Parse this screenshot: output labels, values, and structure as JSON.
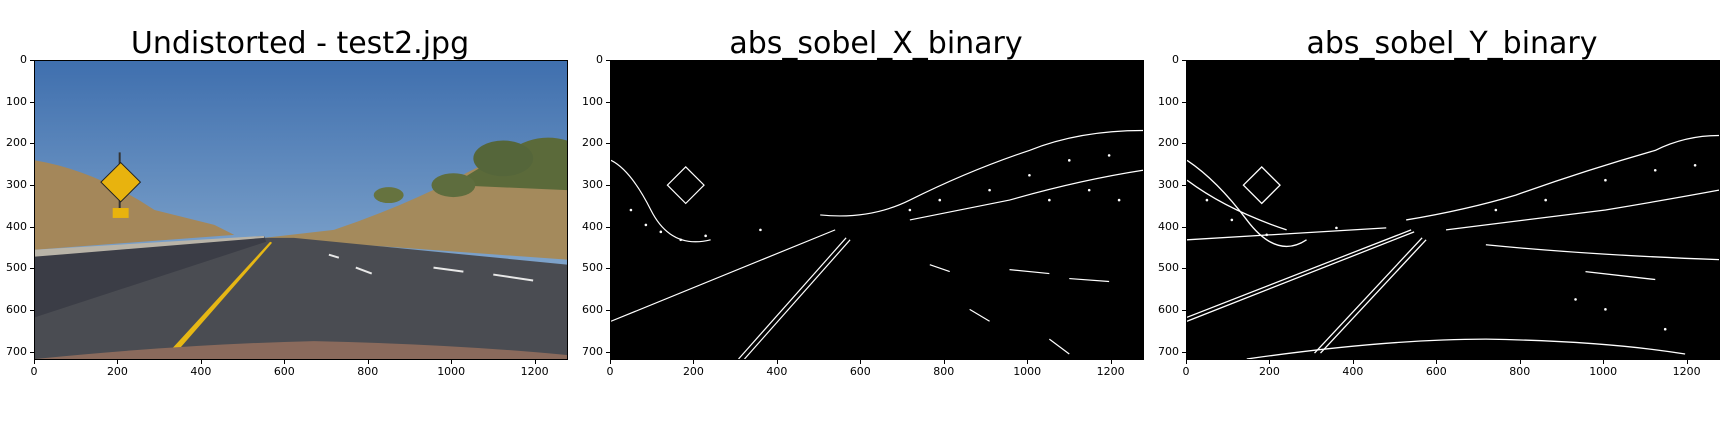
{
  "panels": [
    {
      "title": "Undistorted - test2.jpg",
      "yticks": [
        "0",
        "100",
        "200",
        "300",
        "400",
        "500",
        "600",
        "700"
      ],
      "xticks": [
        "0",
        "200",
        "400",
        "600",
        "800",
        "1000",
        "1200"
      ]
    },
    {
      "title": "abs_sobel_X_binary",
      "yticks": [
        "0",
        "100",
        "200",
        "300",
        "400",
        "500",
        "600",
        "700"
      ],
      "xticks": [
        "0",
        "200",
        "400",
        "600",
        "800",
        "1000",
        "1200"
      ]
    },
    {
      "title": "abs_sobel_Y_binary",
      "yticks": [
        "0",
        "100",
        "200",
        "300",
        "400",
        "500",
        "600",
        "700"
      ],
      "xticks": [
        "0",
        "200",
        "400",
        "600",
        "800",
        "1000",
        "1200"
      ]
    }
  ],
  "image_range": {
    "x": [
      0,
      1280
    ],
    "y": [
      0,
      720
    ]
  }
}
